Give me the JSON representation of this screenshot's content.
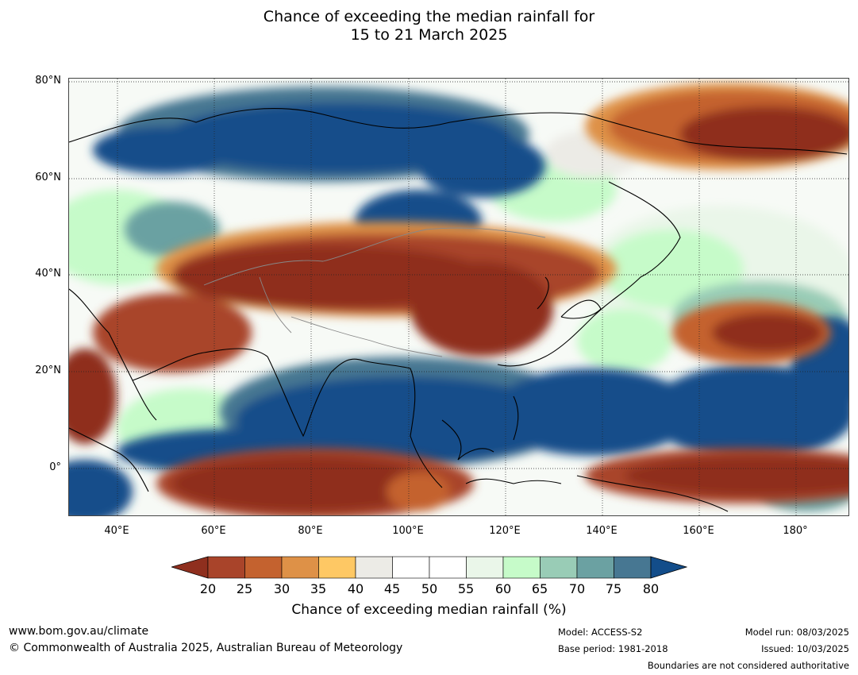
{
  "title_line1": "Chance of exceeding the median rainfall for",
  "title_line2": "15 to 21 March 2025",
  "map": {
    "lat_labels": [
      "80°N",
      "60°N",
      "40°N",
      "20°N",
      "0°"
    ],
    "lon_labels": [
      "40°E",
      "60°E",
      "80°E",
      "100°E",
      "120°E",
      "140°E",
      "160°E",
      "180°"
    ],
    "lat_range": [
      -10,
      80
    ],
    "lon_range": [
      30,
      191
    ]
  },
  "legend": {
    "ticks": [
      "20",
      "25",
      "30",
      "35",
      "40",
      "45",
      "50",
      "55",
      "60",
      "65",
      "70",
      "75",
      "80"
    ],
    "colors": {
      "below20": "#8f2f1e",
      "20-25": "#a9442a",
      "25-30": "#c4622f",
      "30-35": "#de9147",
      "35-40": "#fec864",
      "40-45": "#ecebe6",
      "45-50": "#ffffff",
      "50-55": "#ffffff",
      "55-60": "#eaf6e9",
      "60-65": "#c6fbc9",
      "65-70": "#99ccb6",
      "70-75": "#6ba1a2",
      "75-80": "#477792",
      "above80": "#134d8a"
    },
    "label": "Chance of exceeding median rainfall (%)"
  },
  "footer": {
    "url": "www.bom.gov.au/climate",
    "copyright": "© Commonwealth of Australia 2025, Australian Bureau of Meteorology",
    "model": "Model: ACCESS-S2",
    "base_period": "Base period: 1981-2018",
    "model_run": "Model run: 08/03/2025",
    "issued": "Issued: 10/03/2025",
    "disclaimer": "Boundaries are not considered authoritative"
  }
}
